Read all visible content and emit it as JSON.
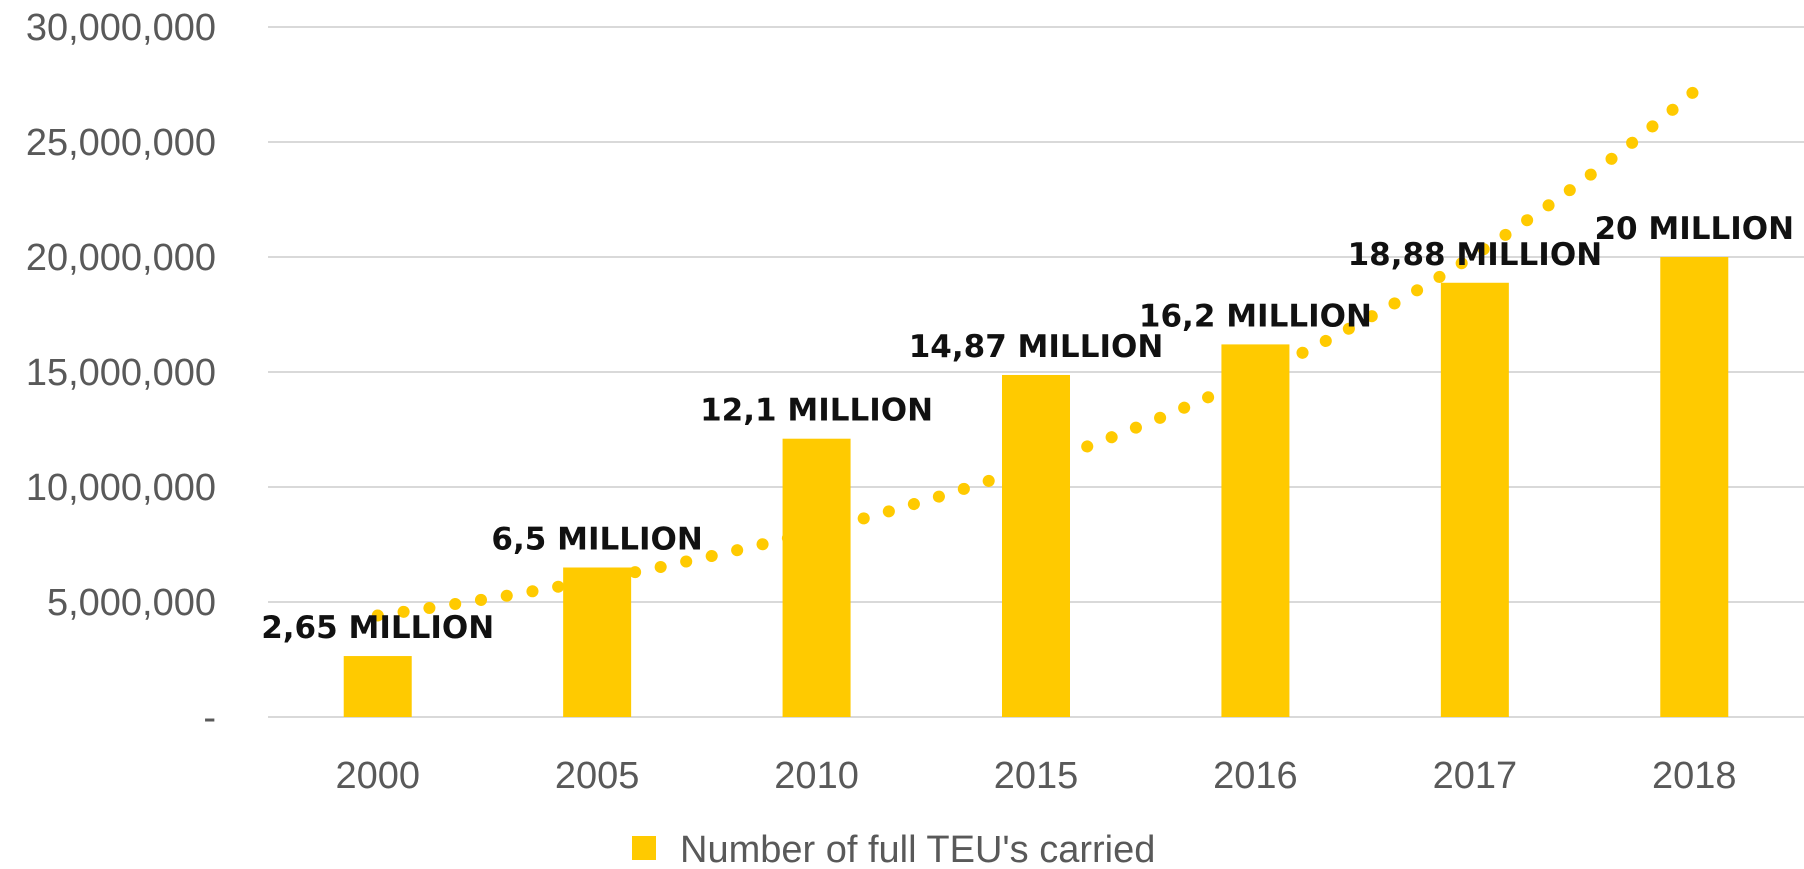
{
  "chart_data": {
    "type": "bar",
    "categories": [
      "2000",
      "2005",
      "2010",
      "2015",
      "2016",
      "2017",
      "2018"
    ],
    "series": [
      {
        "name": "Number of full TEU's carried",
        "values": [
          2650000,
          6500000,
          12100000,
          14870000,
          16200000,
          18880000,
          20000000
        ],
        "data_labels": [
          "2,65 MILLION",
          "6,5 MILLION",
          "12,1 MILLION",
          "14,87 MILLION",
          "16,2 MILLION",
          "18,88 MILLION",
          "20 MILLION"
        ],
        "color": "#FFCA00"
      }
    ],
    "trendline": {
      "type": "exponential",
      "style": "dotted",
      "color": "#FFCA00"
    },
    "y_ticks": [
      {
        "value": 0,
        "label": "-"
      },
      {
        "value": 5000000,
        "label": "5,000,000"
      },
      {
        "value": 10000000,
        "label": "10,000,000"
      },
      {
        "value": 15000000,
        "label": "15,000,000"
      },
      {
        "value": 20000000,
        "label": "20,000,000"
      },
      {
        "value": 25000000,
        "label": "25,000,000"
      },
      {
        "value": 30000000,
        "label": "30,000,000"
      }
    ],
    "ylim": [
      0,
      30000000
    ],
    "grid": true,
    "legend": {
      "position": "bottom",
      "label": "Number of full TEU's carried"
    },
    "title": "",
    "xlabel": "",
    "ylabel": ""
  }
}
